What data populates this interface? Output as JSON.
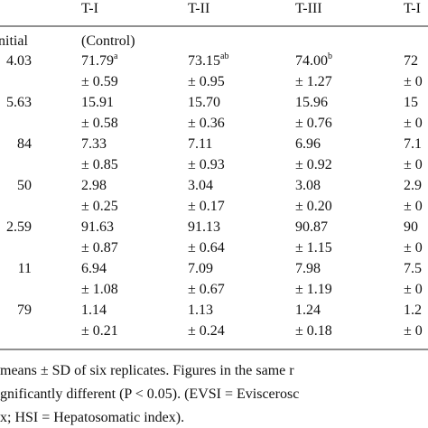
{
  "table": {
    "header": [
      "T-I",
      "T-II",
      "T-III",
      "T-I"
    ],
    "control_row": [
      "nitial",
      "(Control)"
    ],
    "rows": [
      {
        "cells": [
          {
            "value": "4.03"
          },
          {
            "value": "71.79",
            "sup": "a"
          },
          {
            "value": "73.15",
            "sup": "ab"
          },
          {
            "value": "74.00",
            "sup": "b"
          },
          {
            "value": "72"
          }
        ],
        "sd": [
          "± 0.59",
          "± 0.95",
          "± 1.27",
          "± 0"
        ]
      },
      {
        "cells": [
          {
            "value": "5.63"
          },
          {
            "value": "15.91"
          },
          {
            "value": "15.70"
          },
          {
            "value": "15.96"
          },
          {
            "value": "15"
          }
        ],
        "sd": [
          "± 0.58",
          "± 0.36",
          "± 0.76",
          "± 0"
        ]
      },
      {
        "cells": [
          {
            "value": "84"
          },
          {
            "value": "7.33"
          },
          {
            "value": "7.11"
          },
          {
            "value": "6.96"
          },
          {
            "value": "7.1"
          }
        ],
        "sd": [
          "± 0.85",
          "± 0.93",
          "± 0.92",
          "± 0"
        ]
      },
      {
        "cells": [
          {
            "value": "50"
          },
          {
            "value": "2.98"
          },
          {
            "value": "3.04"
          },
          {
            "value": "3.08"
          },
          {
            "value": "2.9"
          }
        ],
        "sd": [
          "± 0.25",
          "± 0.17",
          "± 0.20",
          "± 0"
        ]
      },
      {
        "cells": [
          {
            "value": "2.59"
          },
          {
            "value": "91.63"
          },
          {
            "value": "91.13"
          },
          {
            "value": "90.87"
          },
          {
            "value": "90"
          }
        ],
        "sd": [
          "± 0.87",
          "± 0.64",
          "± 1.15",
          "± 0"
        ]
      },
      {
        "cells": [
          {
            "value": "11"
          },
          {
            "value": "6.94"
          },
          {
            "value": "7.09"
          },
          {
            "value": "7.98"
          },
          {
            "value": "7.5"
          }
        ],
        "sd": [
          "± 1.08",
          "± 0.67",
          "± 1.19",
          "± 0"
        ]
      },
      {
        "cells": [
          {
            "value": "79"
          },
          {
            "value": "1.14"
          },
          {
            "value": "1.13"
          },
          {
            "value": "1.24"
          },
          {
            "value": "1.2"
          }
        ],
        "sd": [
          "± 0.21",
          "± 0.24",
          "± 0.18",
          "± 0"
        ]
      }
    ],
    "footnote": [
      "means ± SD of six replicates. Figures in the same r",
      "gnificantly different (P < 0.05). (EVSI = Eviscerosc",
      "x; HSI = Hepatosomatic index)."
    ]
  }
}
